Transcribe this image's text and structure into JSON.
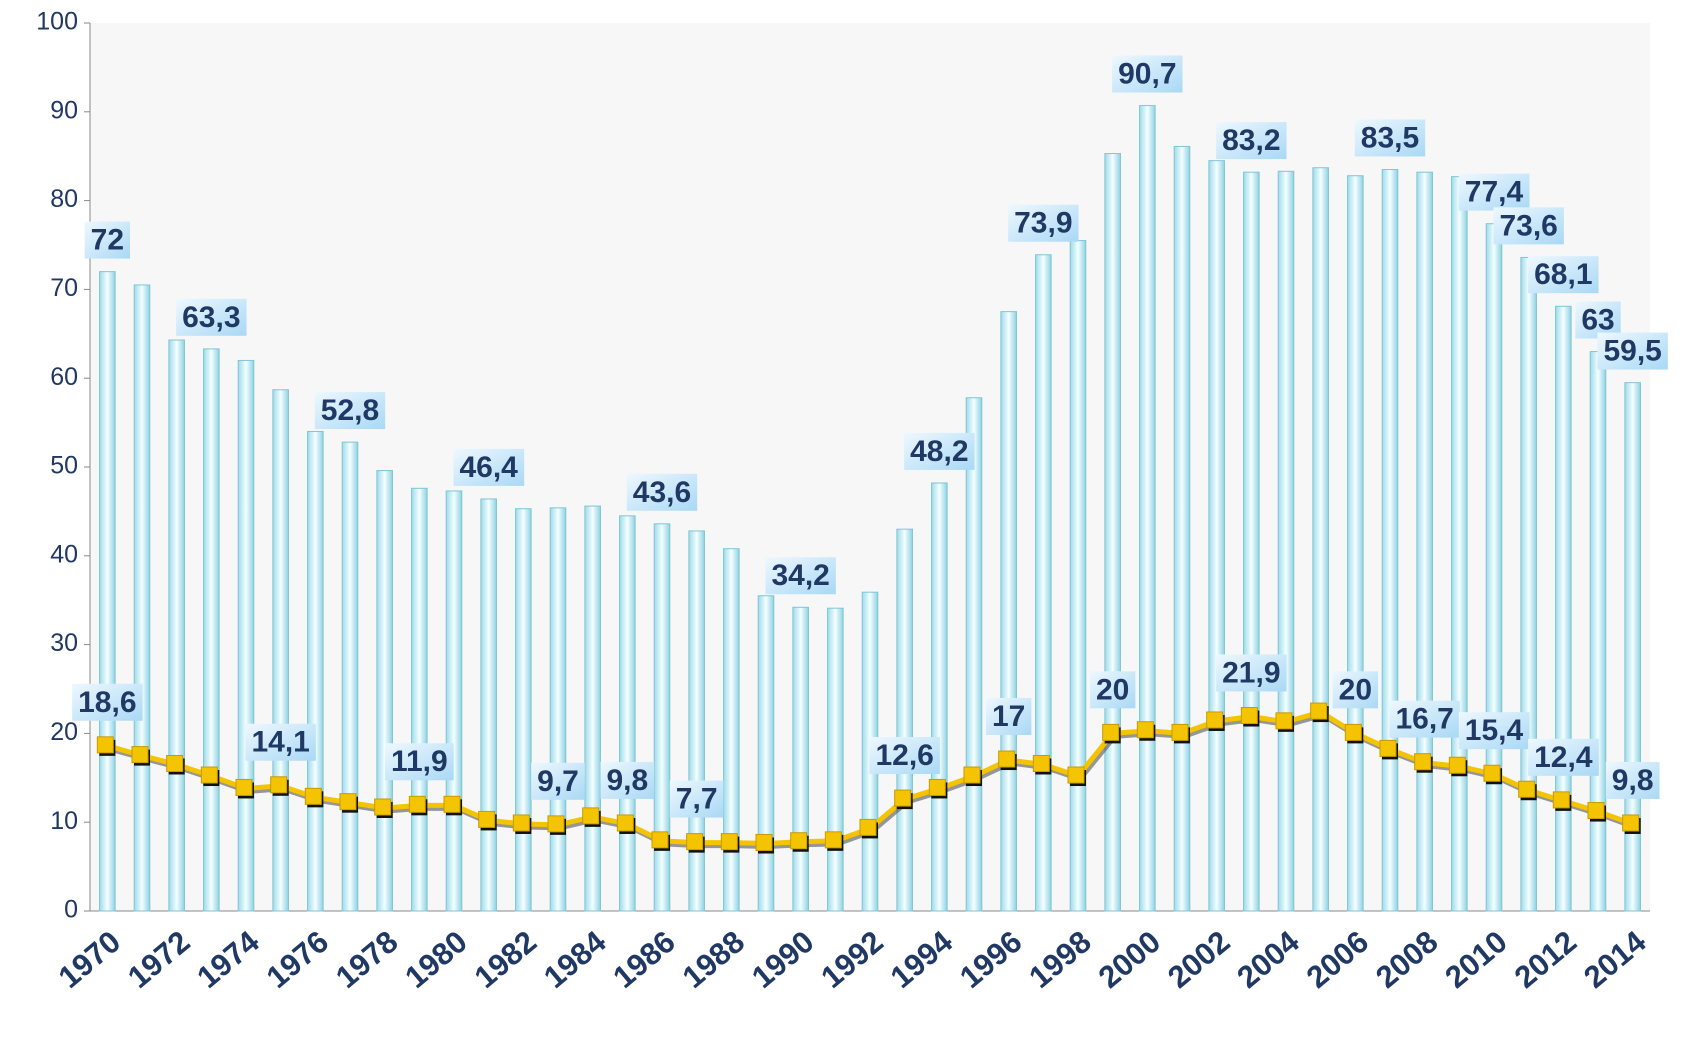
{
  "chart_data": {
    "type": "bar_line",
    "categories": [
      "1970",
      null,
      "1972",
      null,
      "1974",
      null,
      "1976",
      null,
      "1978",
      null,
      "1980",
      null,
      "1982",
      null,
      "1984",
      null,
      "1986",
      null,
      "1988",
      null,
      "1990",
      null,
      "1992",
      null,
      "1994",
      null,
      "1996",
      null,
      "1998",
      null,
      "2000",
      null,
      "2002",
      null,
      "2004",
      null,
      "2006",
      null,
      "2008",
      null,
      "2010",
      null,
      "2012",
      null,
      "2014"
    ],
    "series": [
      {
        "type": "bar",
        "color": "#bfeef5",
        "values": [
          72,
          70.5,
          64.3,
          63.3,
          62,
          58.7,
          54,
          52.8,
          49.6,
          47.6,
          47.3,
          46.4,
          45.3,
          45.4,
          45.6,
          44.5,
          43.6,
          42.8,
          40.8,
          35.5,
          34.2,
          34.1,
          35.9,
          43,
          48.2,
          57.8,
          67.5,
          73.9,
          75.5,
          85.3,
          90.7,
          86.1,
          84.5,
          83.2,
          83.3,
          83.7,
          82.8,
          83.5,
          83.2,
          82.7,
          77.4,
          73.6,
          68.1,
          63,
          59.5
        ],
        "value_labels": [
          "72",
          null,
          null,
          "63,3",
          null,
          null,
          null,
          "52,8",
          null,
          null,
          null,
          "46,4",
          null,
          null,
          null,
          null,
          "43,6",
          null,
          null,
          null,
          "34,2",
          null,
          null,
          null,
          "48,2",
          null,
          null,
          "73,9",
          null,
          null,
          "90,7",
          null,
          null,
          "83,2",
          null,
          null,
          null,
          "83,5",
          null,
          null,
          "77,4",
          "73,6",
          "68,1",
          "63",
          "59,5"
        ]
      },
      {
        "type": "line",
        "color": "#f5c400",
        "values": [
          18.6,
          17.5,
          16.5,
          15.2,
          13.8,
          14.1,
          12.8,
          12.2,
          11.6,
          11.9,
          11.9,
          10.2,
          9.8,
          9.7,
          10.6,
          9.8,
          7.9,
          7.7,
          7.7,
          7.6,
          7.8,
          7.9,
          9.3,
          12.6,
          13.8,
          15.2,
          17,
          16.5,
          15.2,
          20,
          20.3,
          20,
          21.4,
          21.9,
          21.3,
          22.4,
          20,
          18.2,
          16.7,
          16.3,
          15.4,
          13.6,
          12.4,
          11.2,
          9.8
        ],
        "value_labels": [
          "18,6",
          null,
          null,
          null,
          null,
          "14,1",
          null,
          null,
          null,
          "11,9",
          null,
          null,
          null,
          "9,7",
          null,
          "9,8",
          null,
          "7,7",
          null,
          null,
          null,
          null,
          null,
          "12,6",
          null,
          null,
          "17",
          null,
          null,
          "20",
          null,
          null,
          null,
          "21,9",
          null,
          null,
          "20",
          null,
          "16,7",
          null,
          "15,4",
          null,
          "12,4",
          null,
          "9,8"
        ]
      }
    ],
    "ylim": [
      0,
      100
    ],
    "yticks": [
      0,
      10,
      20,
      30,
      40,
      50,
      60,
      70,
      80,
      90,
      100
    ]
  }
}
